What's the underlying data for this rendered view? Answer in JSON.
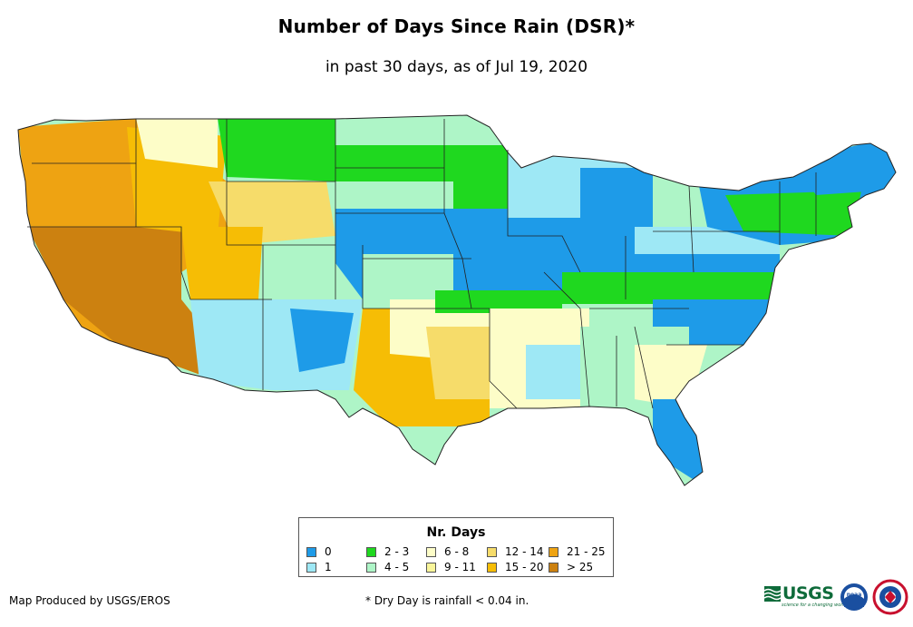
{
  "title": "Number of Days Since Rain (DSR)*",
  "subtitle": "in past 30 days, as of Jul 19, 2020",
  "legend": {
    "title": "Nr. Days",
    "items": [
      {
        "label": "0",
        "color": "#1e9be8"
      },
      {
        "label": "1",
        "color": "#9ee8f5"
      },
      {
        "label": "2 - 3",
        "color": "#1fd81f"
      },
      {
        "label": "4 - 5",
        "color": "#aef5c7"
      },
      {
        "label": "6 - 8",
        "color": "#fdfdc8"
      },
      {
        "label": "9 - 11",
        "color": "#f9f59a"
      },
      {
        "label": "12 - 14",
        "color": "#f6dc6a"
      },
      {
        "label": "15 - 20",
        "color": "#f6bd05"
      },
      {
        "label": "21 - 25",
        "color": "#eea312"
      },
      {
        "label": "> 25",
        "color": "#cc8110"
      }
    ]
  },
  "credit": "Map Produced by USGS/EROS",
  "footnote": "* Dry Day is rainfall < 0.04 in.",
  "logos": {
    "usgs": "USGS",
    "usgs_tagline": "science for a changing world",
    "noaa": "noaa",
    "nws": "NWS"
  }
}
